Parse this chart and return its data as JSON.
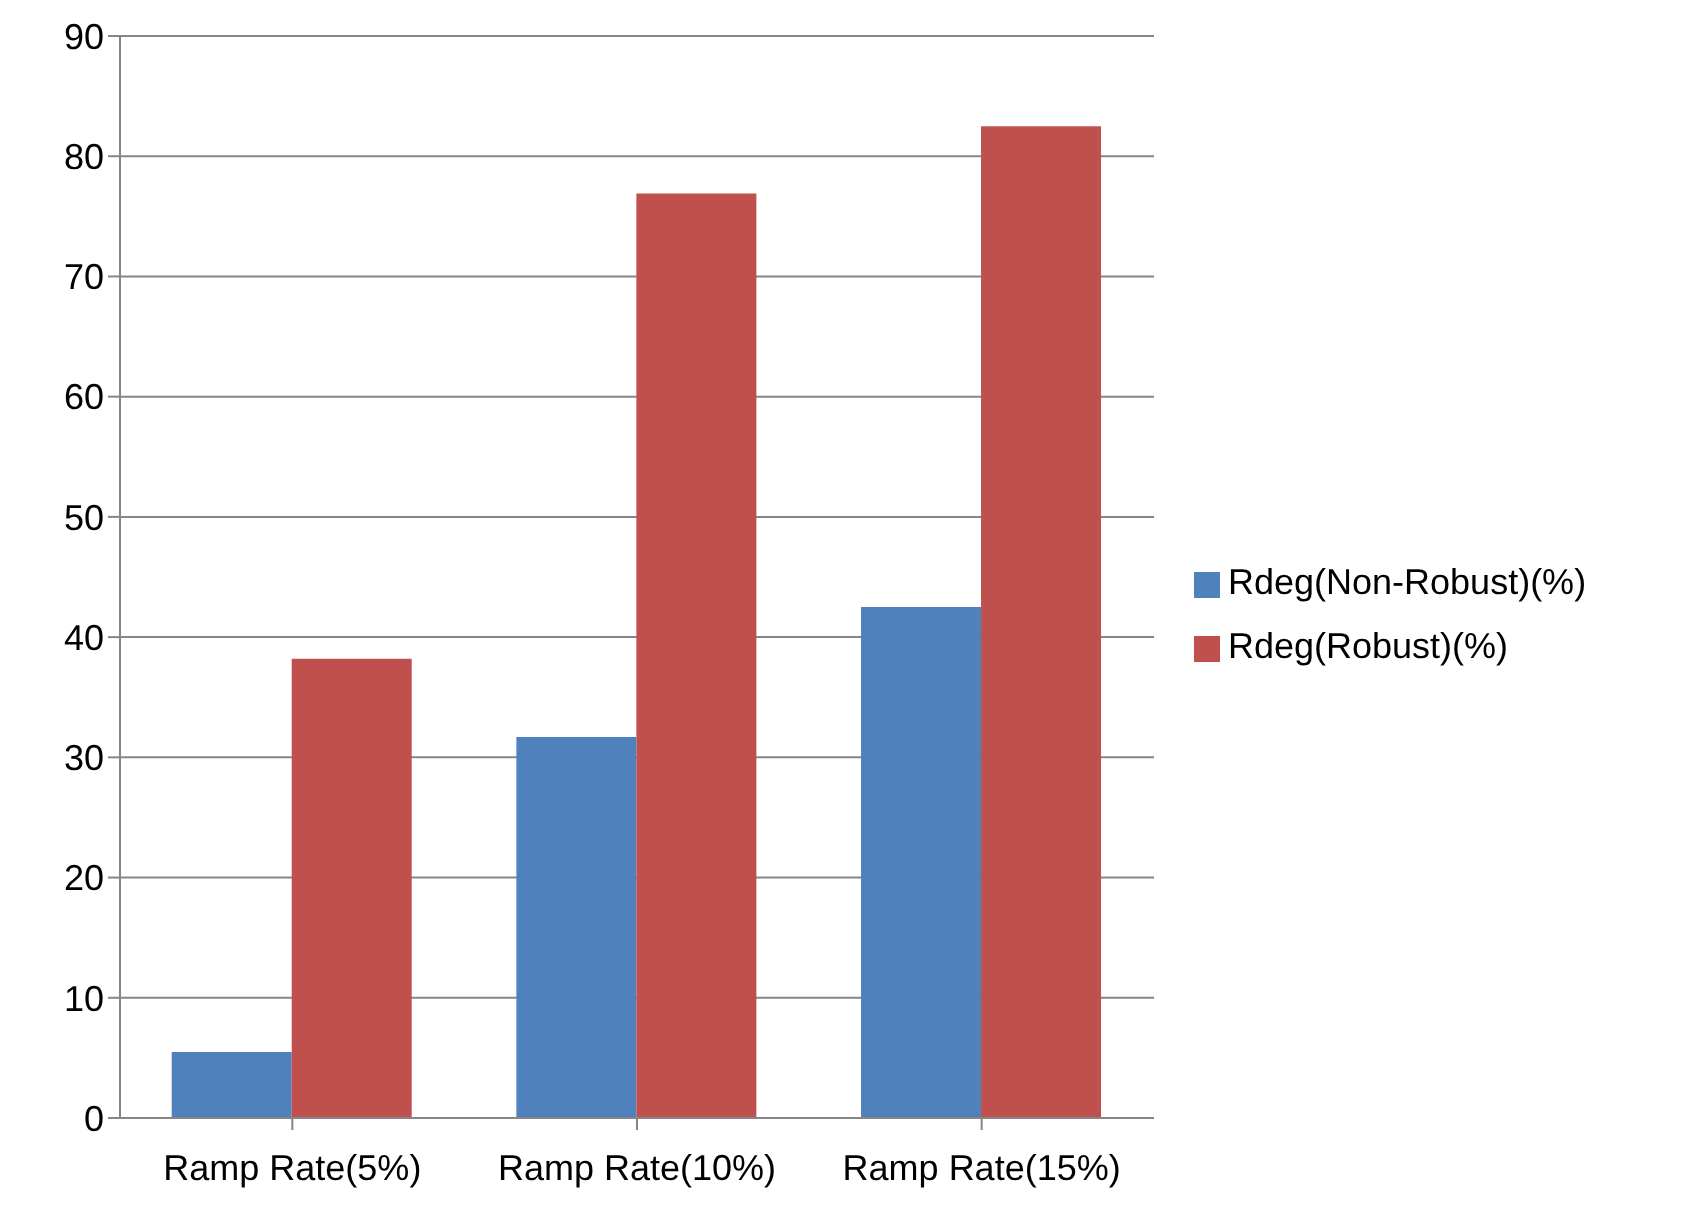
{
  "chart_data": {
    "type": "bar",
    "categories": [
      "Ramp Rate(5%)",
      "Ramp Rate(10%)",
      "Ramp Rate(15%)"
    ],
    "series": [
      {
        "name": "Rdeg(Non-Robust)(%)",
        "color": "#4f81bd",
        "values": [
          5.5,
          31.7,
          42.5
        ]
      },
      {
        "name": "Rdeg(Robust)(%)",
        "color": "#c0504d",
        "values": [
          38.2,
          76.9,
          82.5
        ]
      }
    ],
    "ylim": [
      0,
      90
    ],
    "yticks": [
      0,
      10,
      20,
      30,
      40,
      50,
      60,
      70,
      80,
      90
    ],
    "grid": "y",
    "legend": "right"
  }
}
